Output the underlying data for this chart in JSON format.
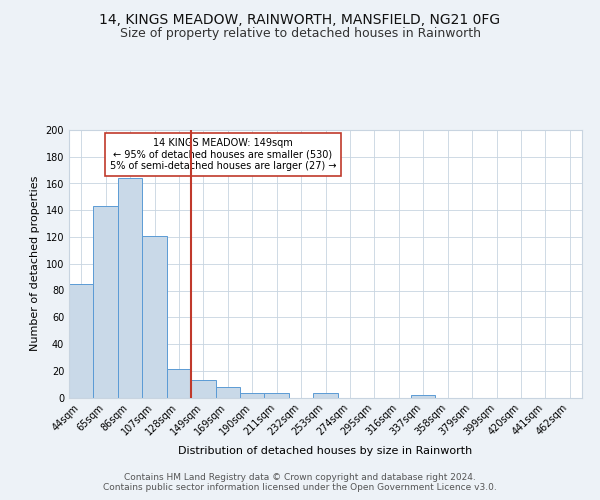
{
  "title": "14, KINGS MEADOW, RAINWORTH, MANSFIELD, NG21 0FG",
  "subtitle": "Size of property relative to detached houses in Rainworth",
  "xlabel": "Distribution of detached houses by size in Rainworth",
  "ylabel": "Number of detached properties",
  "bin_labels": [
    "44sqm",
    "65sqm",
    "86sqm",
    "107sqm",
    "128sqm",
    "149sqm",
    "169sqm",
    "190sqm",
    "211sqm",
    "232sqm",
    "253sqm",
    "274sqm",
    "295sqm",
    "316sqm",
    "337sqm",
    "358sqm",
    "379sqm",
    "399sqm",
    "420sqm",
    "441sqm",
    "462sqm"
  ],
  "bar_heights": [
    85,
    143,
    164,
    121,
    21,
    13,
    8,
    3,
    3,
    0,
    3,
    0,
    0,
    0,
    2,
    0,
    0,
    0,
    0,
    0,
    0
  ],
  "bar_color": "#c9d9e8",
  "bar_edge_color": "#5b9bd5",
  "vline_x_index": 5,
  "vline_color": "#c0392b",
  "annotation_text": "14 KINGS MEADOW: 149sqm\n← 95% of detached houses are smaller (530)\n5% of semi-detached houses are larger (27) →",
  "annotation_box_color": "white",
  "annotation_box_edge_color": "#c0392b",
  "ylim": [
    0,
    200
  ],
  "yticks": [
    0,
    20,
    40,
    60,
    80,
    100,
    120,
    140,
    160,
    180,
    200
  ],
  "footer_text": "Contains HM Land Registry data © Crown copyright and database right 2024.\nContains public sector information licensed under the Open Government Licence v3.0.",
  "background_color": "#edf2f7",
  "plot_background_color": "#ffffff",
  "grid_color": "#c8d4e0",
  "title_fontsize": 10,
  "subtitle_fontsize": 9,
  "ylabel_fontsize": 8,
  "xlabel_fontsize": 8,
  "tick_fontsize": 7,
  "annotation_fontsize": 7,
  "footer_fontsize": 6.5
}
